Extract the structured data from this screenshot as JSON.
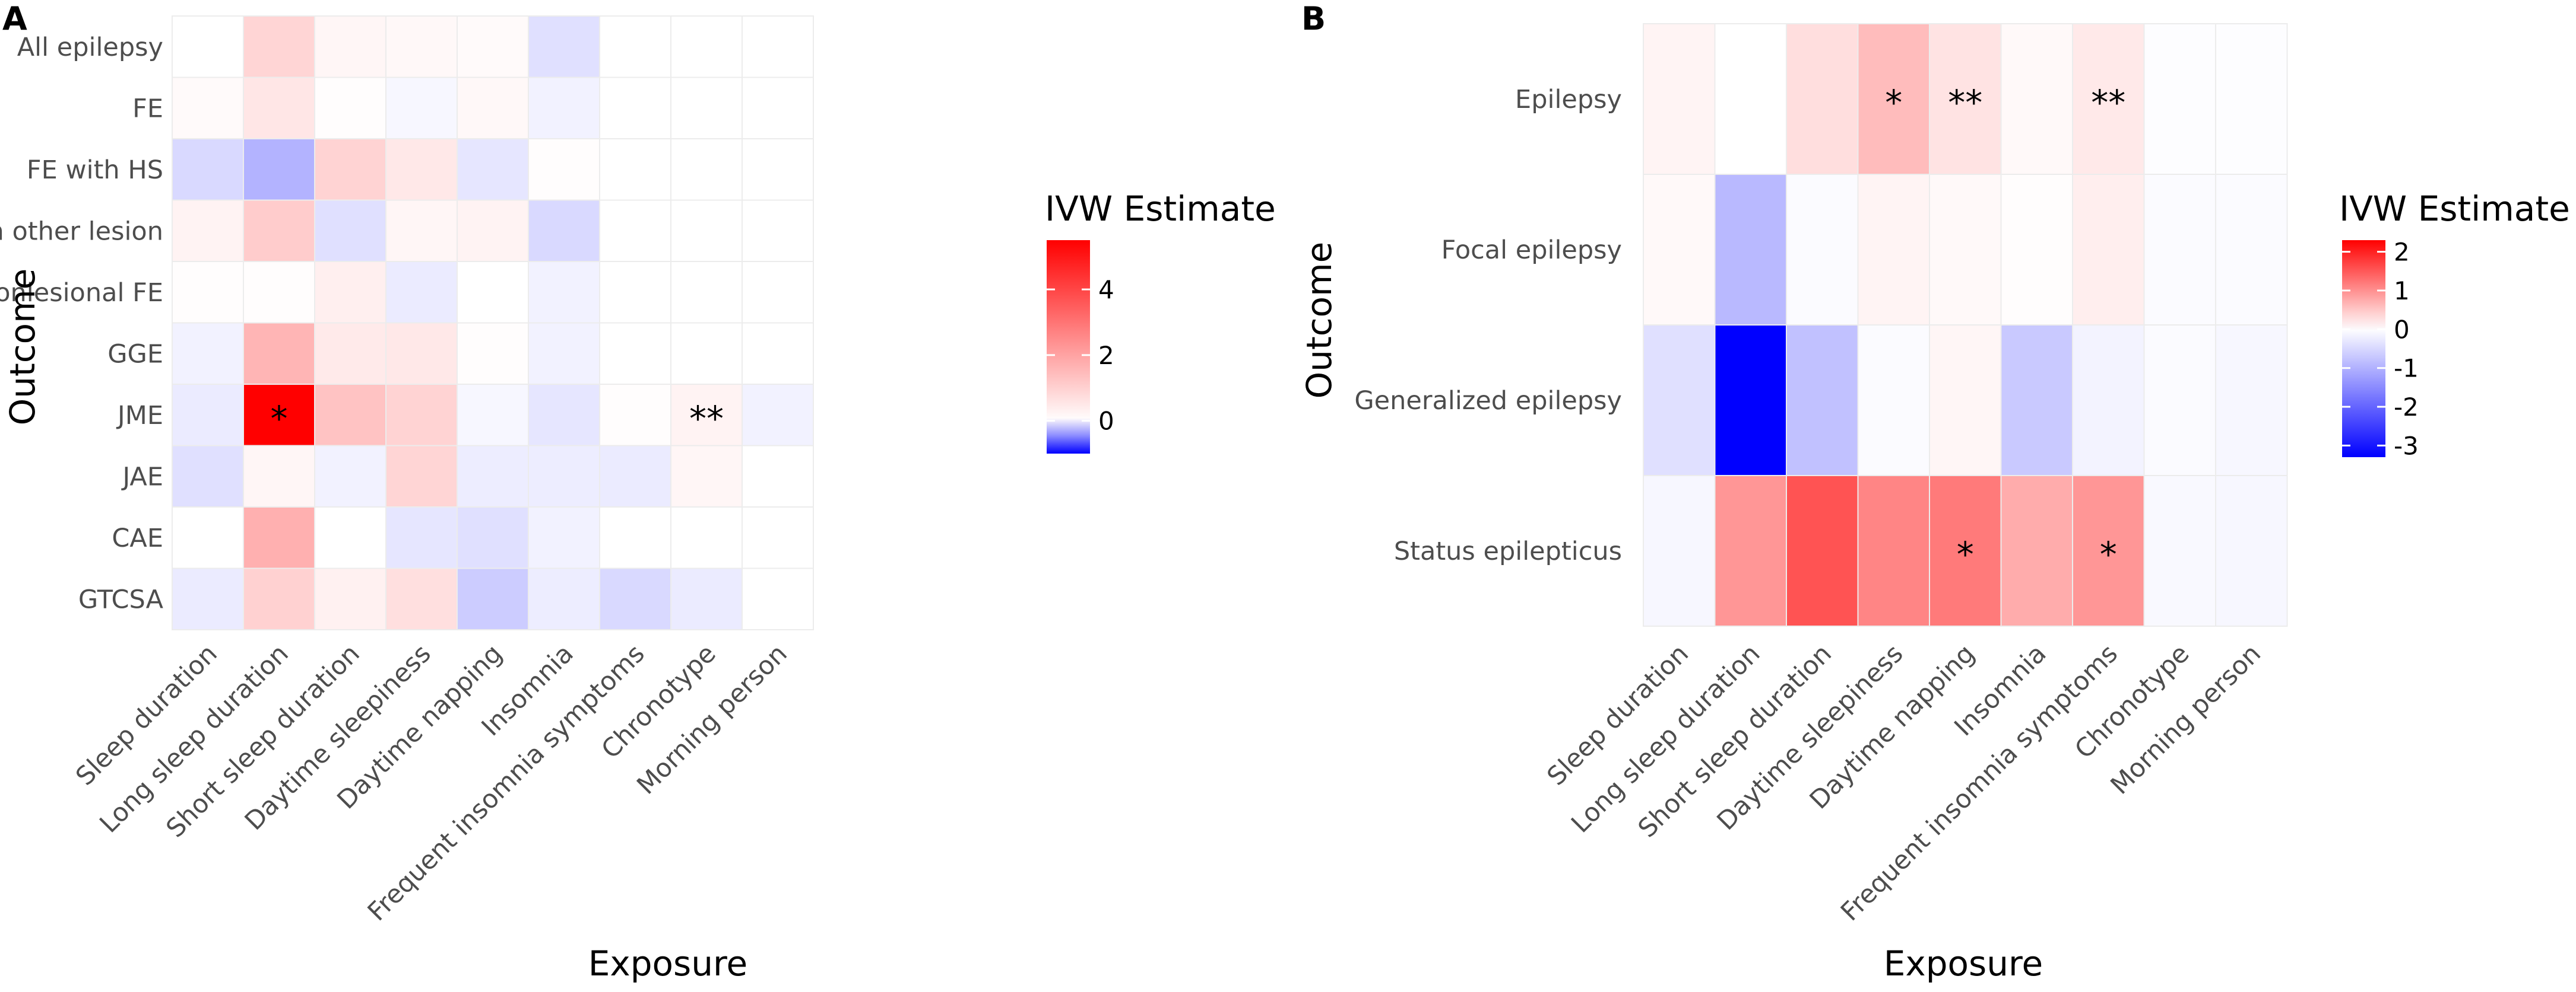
{
  "chart_data": [
    {
      "panel": "A",
      "type": "heatmap",
      "xlabel": "Exposure",
      "ylabel": "Outcome",
      "legend_title": "IVW Estimate",
      "legend_ticks": [
        4,
        2,
        0
      ],
      "legend_tick_labels": [
        "4",
        "2",
        "0"
      ],
      "color_min": -1.0,
      "color_max": 5.5,
      "low_color": "#0000ff",
      "mid_color": "#ffffff",
      "high_color": "#ff0000",
      "columns": [
        "Sleep duration",
        "Long sleep duration",
        "Short sleep duration",
        "Daytime sleepiness",
        "Daytime napping",
        "Insomnia",
        "Frequent insomnia symptoms",
        "Chronotype",
        "Morning person"
      ],
      "rows": [
        "All epilepsy",
        "FE",
        "FE with HS",
        "FE with other lesion",
        "Nonlesional FE",
        "GGE",
        "JME",
        "JAE",
        "CAE",
        "GTCSA"
      ],
      "values": [
        [
          0.0,
          0.9,
          0.2,
          0.15,
          0.1,
          -0.12,
          0.0,
          0.0,
          0.0
        ],
        [
          0.1,
          0.55,
          0.05,
          -0.03,
          0.15,
          -0.05,
          0.0,
          0.0,
          0.0
        ],
        [
          -0.15,
          -0.3,
          0.95,
          0.5,
          -0.1,
          0.05,
          0.0,
          0.0,
          0.0
        ],
        [
          0.25,
          1.1,
          -0.12,
          0.2,
          0.25,
          -0.15,
          0.0,
          0.0,
          0.0
        ],
        [
          0.05,
          0.05,
          0.35,
          -0.08,
          0.0,
          -0.05,
          0.0,
          0.0,
          0.0
        ],
        [
          -0.05,
          1.6,
          0.45,
          0.5,
          0.05,
          -0.05,
          0.0,
          0.0,
          0.0
        ],
        [
          -0.08,
          5.5,
          1.3,
          0.95,
          -0.03,
          -0.1,
          0.05,
          0.25,
          -0.05
        ],
        [
          -0.12,
          0.2,
          -0.05,
          0.9,
          -0.07,
          -0.07,
          -0.08,
          0.2,
          0.0
        ],
        [
          0.0,
          1.7,
          0.0,
          -0.1,
          -0.12,
          -0.05,
          0.0,
          0.0,
          0.0
        ],
        [
          -0.08,
          1.0,
          0.3,
          0.7,
          -0.2,
          -0.07,
          -0.15,
          -0.08,
          0.0
        ]
      ],
      "annotations": [
        {
          "row": "JME",
          "col": "Long sleep duration",
          "text": "*"
        },
        {
          "row": "JME",
          "col": "Chronotype",
          "text": "**"
        }
      ]
    },
    {
      "panel": "B",
      "type": "heatmap",
      "xlabel": "Exposure",
      "ylabel": "Outcome",
      "legend_title": "IVW Estimate",
      "legend_ticks": [
        2,
        1,
        0,
        -1,
        -2,
        -3
      ],
      "legend_tick_labels": [
        "2",
        "1",
        "0",
        "-1",
        "-2",
        "-3"
      ],
      "color_min": -3.3,
      "color_max": 2.3,
      "low_color": "#0000ff",
      "mid_color": "#ffffff",
      "high_color": "#ff0000",
      "columns": [
        "Sleep duration",
        "Long sleep duration",
        "Short sleep duration",
        "Daytime sleepiness",
        "Daytime napping",
        "Insomnia",
        "Frequent insomnia symptoms",
        "Chronotype",
        "Morning person"
      ],
      "rows": [
        "Epilepsy",
        "Focal epilepsy",
        "Generalized epilepsy",
        "Status epilepticus"
      ],
      "values": [
        [
          0.1,
          0.0,
          0.3,
          0.6,
          0.25,
          0.05,
          0.2,
          -0.03,
          -0.03
        ],
        [
          0.05,
          -0.9,
          -0.05,
          0.1,
          0.05,
          0.02,
          0.15,
          -0.05,
          -0.05
        ],
        [
          -0.4,
          -3.3,
          -0.8,
          -0.05,
          0.08,
          -0.7,
          -0.15,
          -0.05,
          -0.1
        ],
        [
          -0.1,
          0.95,
          1.55,
          1.1,
          1.2,
          0.75,
          0.95,
          -0.08,
          -0.1
        ]
      ],
      "annotations": [
        {
          "row": "Epilepsy",
          "col": "Daytime sleepiness",
          "text": "*"
        },
        {
          "row": "Epilepsy",
          "col": "Daytime napping",
          "text": "**"
        },
        {
          "row": "Epilepsy",
          "col": "Frequent insomnia symptoms",
          "text": "**"
        },
        {
          "row": "Status epilepticus",
          "col": "Daytime napping",
          "text": "*"
        },
        {
          "row": "Status epilepticus",
          "col": "Frequent insomnia symptoms",
          "text": "*"
        }
      ]
    }
  ]
}
